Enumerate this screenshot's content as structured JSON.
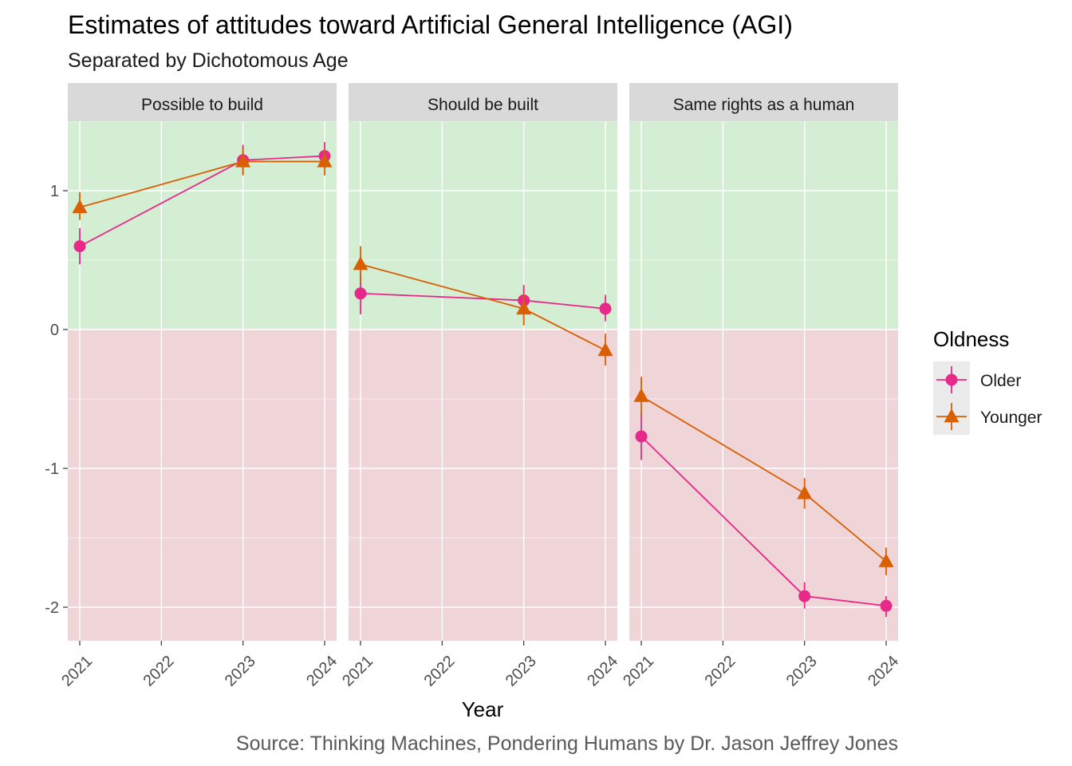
{
  "title": "Estimates of attitudes toward Artificial General Intelligence (AGI)",
  "subtitle": "Separated by Dichotomous Age",
  "caption": "Source: Thinking Machines, Pondering Humans by Dr. Jason Jeffrey Jones",
  "chart_data": {
    "type": "line",
    "x": [
      2021,
      2022,
      2023,
      2024
    ],
    "x_tick_labels": [
      "2021",
      "2022",
      "2023",
      "2024"
    ],
    "xlabel": "Year",
    "ylabel": "",
    "ylim": [
      -2.25,
      1.5
    ],
    "y_ticks": [
      1,
      0,
      -1,
      -2
    ],
    "y_tick_labels": [
      "1",
      "0",
      "-1",
      "-2"
    ],
    "grid": true,
    "background_bands": {
      "positive": "#d4eed4",
      "negative": "#efd4d8"
    },
    "legend": {
      "title": "Oldness",
      "placement": "right",
      "entries": [
        {
          "name": "Older",
          "color": "#e7298a",
          "shape": "circle"
        },
        {
          "name": "Younger",
          "color": "#d95f02",
          "shape": "triangle"
        }
      ]
    },
    "panels": [
      {
        "title": "Possible to build",
        "series": [
          {
            "name": "Older",
            "points": [
              {
                "x": 2021,
                "y": 0.6,
                "lo": 0.47,
                "hi": 0.73
              },
              {
                "x": 2023,
                "y": 1.22,
                "lo": 1.12,
                "hi": 1.33
              },
              {
                "x": 2024,
                "y": 1.25,
                "lo": 1.16,
                "hi": 1.35
              }
            ]
          },
          {
            "name": "Younger",
            "points": [
              {
                "x": 2021,
                "y": 0.88,
                "lo": 0.79,
                "hi": 0.99
              },
              {
                "x": 2023,
                "y": 1.21,
                "lo": 1.11,
                "hi": 1.31
              },
              {
                "x": 2024,
                "y": 1.21,
                "lo": 1.11,
                "hi": 1.3
              }
            ]
          }
        ]
      },
      {
        "title": "Should be built",
        "series": [
          {
            "name": "Older",
            "points": [
              {
                "x": 2021,
                "y": 0.26,
                "lo": 0.11,
                "hi": 0.4
              },
              {
                "x": 2023,
                "y": 0.21,
                "lo": 0.11,
                "hi": 0.32
              },
              {
                "x": 2024,
                "y": 0.15,
                "lo": 0.06,
                "hi": 0.25
              }
            ]
          },
          {
            "name": "Younger",
            "points": [
              {
                "x": 2021,
                "y": 0.47,
                "lo": 0.33,
                "hi": 0.6
              },
              {
                "x": 2023,
                "y": 0.15,
                "lo": 0.03,
                "hi": 0.26
              },
              {
                "x": 2024,
                "y": -0.15,
                "lo": -0.26,
                "hi": -0.03
              }
            ]
          }
        ]
      },
      {
        "title": "Same rights as a human",
        "series": [
          {
            "name": "Older",
            "points": [
              {
                "x": 2021,
                "y": -0.77,
                "lo": -0.94,
                "hi": -0.6
              },
              {
                "x": 2023,
                "y": -1.92,
                "lo": -2.01,
                "hi": -1.82
              },
              {
                "x": 2024,
                "y": -1.99,
                "lo": -2.07,
                "hi": -1.92
              }
            ]
          },
          {
            "name": "Younger",
            "points": [
              {
                "x": 2021,
                "y": -0.48,
                "lo": -0.62,
                "hi": -0.34
              },
              {
                "x": 2023,
                "y": -1.18,
                "lo": -1.29,
                "hi": -1.07
              },
              {
                "x": 2024,
                "y": -1.67,
                "lo": -1.77,
                "hi": -1.57
              }
            ]
          }
        ]
      }
    ]
  }
}
